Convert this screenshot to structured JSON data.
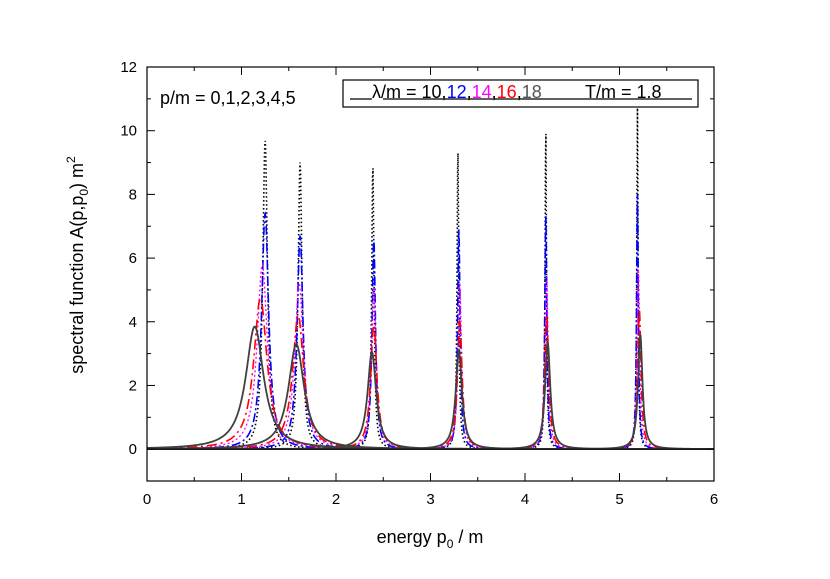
{
  "chart_data": {
    "type": "line",
    "title": "",
    "xlabel": "energy p0 / m",
    "xlabel_parts": {
      "prefix": "energy  p",
      "sub": "0",
      "suffix": " / m"
    },
    "ylabel": "spectral function A(p,p0) m2",
    "ylabel_parts": {
      "prefix": "spectral function  A(p,p",
      "sub": "0",
      "mid": ")  m",
      "sup": "2"
    },
    "xlim": [
      0,
      6
    ],
    "ylim": [
      -1,
      12
    ],
    "x_ticks": [
      0,
      1,
      2,
      3,
      4,
      5,
      6
    ],
    "y_ticks": [
      0,
      2,
      4,
      6,
      8,
      10,
      12
    ],
    "x_tick_labels": [
      "0",
      "1",
      "2",
      "3",
      "4",
      "5",
      "6"
    ],
    "y_tick_labels": [
      "0",
      "2",
      "4",
      "6",
      "8",
      "10",
      "12"
    ],
    "grid": false,
    "annotations": {
      "momenta": "p/m = 0,1,2,3,4,5",
      "temperature": "T/m = 1.8"
    },
    "legend": {
      "placement": "top-right",
      "prefix": "λ/m = ",
      "entries": [
        {
          "text": "10",
          "color": "#000000"
        },
        {
          "text": "12",
          "color": "#0000ff"
        },
        {
          "text": "14",
          "color": "#ff00ff"
        },
        {
          "text": "16",
          "color": "#ff0000"
        },
        {
          "text": "18",
          "color": "#555555"
        }
      ],
      "separator": ","
    },
    "momenta": [
      0,
      1,
      2,
      3,
      4,
      5
    ],
    "series": [
      {
        "name": "λ/m = 10",
        "color": "#000000",
        "dash": "1.5,2.5",
        "width": 1.6,
        "peaks": [
          {
            "x0": 1.25,
            "height": 9.7,
            "gamma": 0.03
          },
          {
            "x0": 1.62,
            "height": 9.0,
            "gamma": 0.025
          },
          {
            "x0": 2.39,
            "height": 8.9,
            "gamma": 0.015
          },
          {
            "x0": 3.29,
            "height": 9.45,
            "gamma": 0.011
          },
          {
            "x0": 4.22,
            "height": 10.15,
            "gamma": 0.009
          },
          {
            "x0": 5.19,
            "height": 10.9,
            "gamma": 0.008
          }
        ]
      },
      {
        "name": "λ/m = 12",
        "color": "#0000ff",
        "dash": "9,3,2,3",
        "width": 1.6,
        "peaks": [
          {
            "x0": 1.25,
            "height": 7.4,
            "gamma": 0.045
          },
          {
            "x0": 1.62,
            "height": 6.7,
            "gamma": 0.038
          },
          {
            "x0": 2.4,
            "height": 6.6,
            "gamma": 0.022
          },
          {
            "x0": 3.3,
            "height": 6.9,
            "gamma": 0.016
          },
          {
            "x0": 4.22,
            "height": 7.4,
            "gamma": 0.013
          },
          {
            "x0": 5.19,
            "height": 8.0,
            "gamma": 0.011
          }
        ]
      },
      {
        "name": "λ/m = 14",
        "color": "#ff00ff",
        "dash": "2,2.5",
        "width": 1.3,
        "peaks": [
          {
            "x0": 1.22,
            "height": 5.8,
            "gamma": 0.065
          },
          {
            "x0": 1.61,
            "height": 5.2,
            "gamma": 0.055
          },
          {
            "x0": 2.4,
            "height": 5.1,
            "gamma": 0.03
          },
          {
            "x0": 3.31,
            "height": 5.2,
            "gamma": 0.022
          },
          {
            "x0": 4.23,
            "height": 5.4,
            "gamma": 0.018
          },
          {
            "x0": 5.2,
            "height": 5.7,
            "gamma": 0.016
          }
        ]
      },
      {
        "name": "λ/m = 16",
        "color": "#ff0000",
        "dash": "10,4,2,4",
        "width": 1.6,
        "peaks": [
          {
            "x0": 1.2,
            "height": 4.75,
            "gamma": 0.085
          },
          {
            "x0": 1.6,
            "height": 4.2,
            "gamma": 0.072
          },
          {
            "x0": 2.4,
            "height": 3.9,
            "gamma": 0.04
          },
          {
            "x0": 3.31,
            "height": 4.0,
            "gamma": 0.03
          },
          {
            "x0": 4.23,
            "height": 4.2,
            "gamma": 0.025
          },
          {
            "x0": 5.21,
            "height": 4.4,
            "gamma": 0.021
          }
        ]
      },
      {
        "name": "λ/m = 18",
        "color": "#404040",
        "dash": "",
        "width": 1.8,
        "peaks": [
          {
            "x0": 1.14,
            "height": 3.85,
            "gamma": 0.115
          },
          {
            "x0": 1.58,
            "height": 3.3,
            "gamma": 0.1
          },
          {
            "x0": 2.38,
            "height": 3.05,
            "gamma": 0.055
          },
          {
            "x0": 3.3,
            "height": 3.1,
            "gamma": 0.04
          },
          {
            "x0": 4.24,
            "height": 3.35,
            "gamma": 0.033
          },
          {
            "x0": 5.22,
            "height": 3.6,
            "gamma": 0.028
          }
        ]
      }
    ]
  }
}
